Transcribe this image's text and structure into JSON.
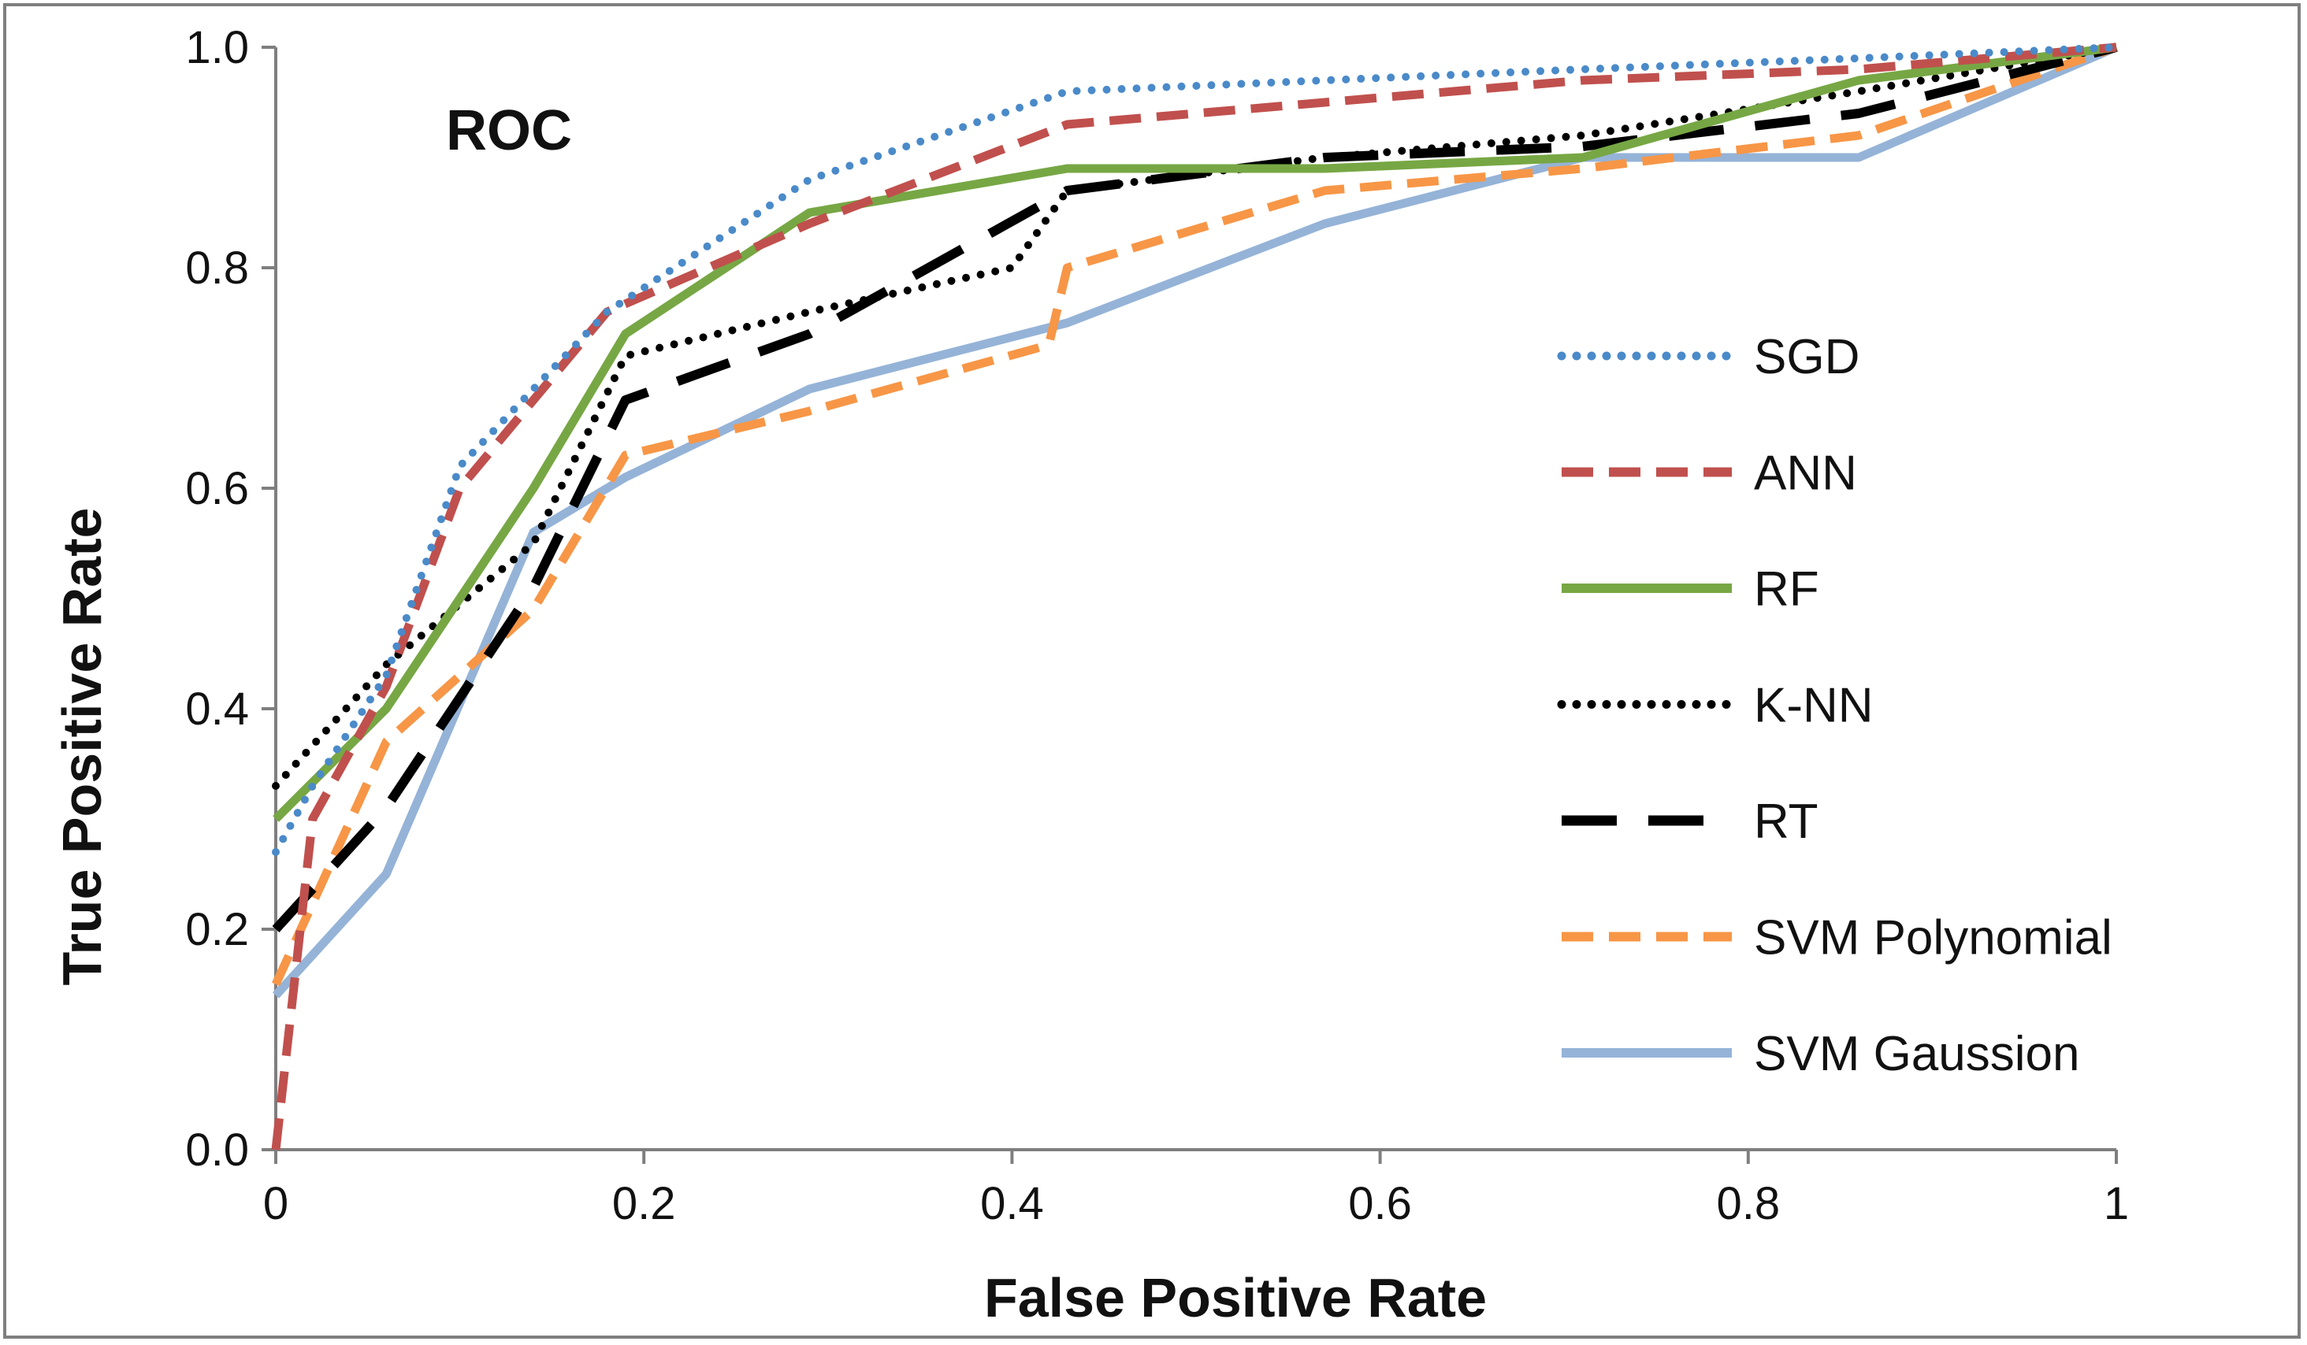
{
  "chart_data": {
    "type": "line",
    "title": "ROC",
    "xlabel": "False Positive Rate",
    "ylabel": "True Positive Rate",
    "xlim": [
      0,
      1
    ],
    "ylim": [
      0,
      1
    ],
    "x_ticks": [
      0,
      0.2,
      0.4,
      0.6,
      0.8,
      1
    ],
    "x_tick_labels": [
      "0",
      "0.2",
      "0.4",
      "0.6",
      "0.8",
      "1"
    ],
    "y_ticks": [
      0,
      0.2,
      0.4,
      0.6,
      0.8,
      1
    ],
    "y_tick_labels": [
      "0.0",
      "0.2",
      "0.4",
      "0.6",
      "0.8",
      "1.0"
    ],
    "grid": false,
    "legend_position": "right",
    "series": [
      {
        "name": "SGD",
        "color": "#4a8ac9",
        "style": "dotted",
        "x": [
          0,
          0.02,
          0.06,
          0.1,
          0.18,
          0.29,
          0.43,
          0.57,
          0.71,
          0.86,
          1
        ],
        "y": [
          0.27,
          0.33,
          0.43,
          0.62,
          0.76,
          0.88,
          0.96,
          0.97,
          0.98,
          0.99,
          1.0
        ]
      },
      {
        "name": "ANN",
        "color": "#c0504d",
        "style": "dashed",
        "x": [
          0,
          0.02,
          0.06,
          0.1,
          0.18,
          0.29,
          0.43,
          0.57,
          0.71,
          0.86,
          1
        ],
        "y": [
          0.0,
          0.3,
          0.42,
          0.6,
          0.76,
          0.84,
          0.93,
          0.95,
          0.97,
          0.98,
          1.0
        ]
      },
      {
        "name": "RF",
        "color": "#77a744",
        "style": "solid",
        "x": [
          0,
          0.06,
          0.14,
          0.19,
          0.29,
          0.43,
          0.57,
          0.71,
          0.86,
          1
        ],
        "y": [
          0.3,
          0.4,
          0.6,
          0.74,
          0.85,
          0.89,
          0.89,
          0.9,
          0.97,
          1.0
        ]
      },
      {
        "name": "K-NN",
        "color": "#000000",
        "style": "dotted",
        "x": [
          0,
          0.06,
          0.14,
          0.19,
          0.29,
          0.4,
          0.43,
          0.57,
          0.71,
          0.86,
          1
        ],
        "y": [
          0.33,
          0.44,
          0.55,
          0.72,
          0.76,
          0.8,
          0.87,
          0.9,
          0.92,
          0.96,
          1.0
        ]
      },
      {
        "name": "RT",
        "color": "#000000",
        "style": "longdash",
        "x": [
          0,
          0.06,
          0.14,
          0.19,
          0.29,
          0.43,
          0.57,
          0.71,
          0.86,
          1
        ],
        "y": [
          0.2,
          0.31,
          0.51,
          0.68,
          0.74,
          0.87,
          0.9,
          0.91,
          0.94,
          1.0
        ]
      },
      {
        "name": "SVM Polynomial",
        "color": "#f79646",
        "style": "dashed",
        "x": [
          0,
          0.06,
          0.14,
          0.19,
          0.29,
          0.42,
          0.43,
          0.57,
          0.71,
          0.86,
          1
        ],
        "y": [
          0.15,
          0.37,
          0.49,
          0.63,
          0.67,
          0.73,
          0.8,
          0.87,
          0.89,
          0.92,
          1.0
        ]
      },
      {
        "name": "SVM Gaussion",
        "color": "#95b3d7",
        "style": "solid",
        "x": [
          0,
          0.06,
          0.14,
          0.19,
          0.29,
          0.43,
          0.57,
          0.71,
          0.86,
          1
        ],
        "y": [
          0.14,
          0.25,
          0.56,
          0.61,
          0.69,
          0.75,
          0.84,
          0.9,
          0.9,
          1.0
        ]
      }
    ]
  }
}
